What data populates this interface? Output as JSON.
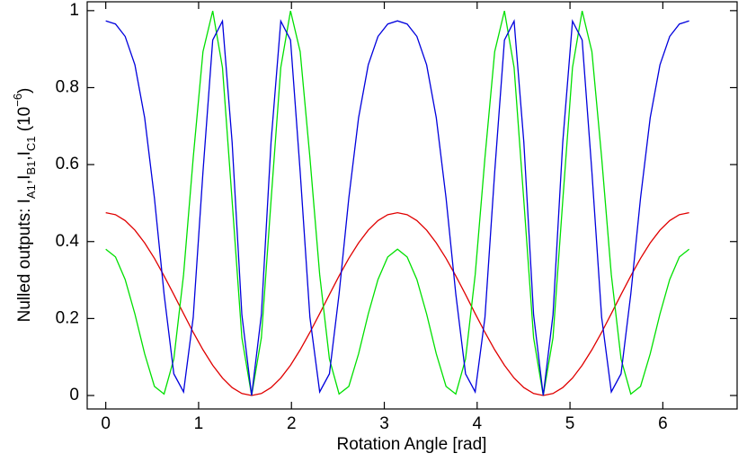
{
  "chart_data": {
    "type": "line",
    "x_label": "Rotation Angle [rad]",
    "y_label": [
      "Nulled outputs: I",
      "A1",
      ",I",
      "B1",
      ",I",
      "C1",
      "  (10",
      "−6",
      ")"
    ],
    "xlim": [
      -0.2,
      6.8
    ],
    "ylim": [
      -0.035,
      1.023
    ],
    "xticks": [
      0,
      1,
      2,
      3,
      4,
      5,
      6
    ],
    "yticks": [
      0,
      0.2,
      0.4,
      0.6,
      0.8,
      1
    ],
    "x": [
      0,
      0.105,
      0.209,
      0.314,
      0.419,
      0.524,
      0.628,
      0.733,
      0.838,
      0.942,
      1.047,
      1.152,
      1.257,
      1.361,
      1.466,
      1.571,
      1.676,
      1.78,
      1.885,
      1.99,
      2.094,
      2.199,
      2.304,
      2.409,
      2.513,
      2.618,
      2.723,
      2.827,
      2.932,
      3.037,
      3.142,
      3.246,
      3.351,
      3.456,
      3.56,
      3.665,
      3.77,
      3.875,
      3.979,
      4.084,
      4.189,
      4.294,
      4.398,
      4.503,
      4.608,
      4.712,
      4.817,
      4.922,
      5.027,
      5.131,
      5.236,
      5.341,
      5.445,
      5.55,
      5.655,
      5.76,
      5.864,
      5.969,
      6.074,
      6.178,
      6.283
    ],
    "series": [
      {
        "color": "#e00000",
        "values": [
          0.475,
          0.4698,
          0.4545,
          0.4296,
          0.3964,
          0.3563,
          0.3109,
          0.2623,
          0.2127,
          0.1641,
          0.1188,
          0.0786,
          0.0454,
          0.0205,
          0.0052,
          0,
          0.0052,
          0.0205,
          0.0454,
          0.0786,
          0.1188,
          0.1641,
          0.2127,
          0.2623,
          0.3109,
          0.3563,
          0.3964,
          0.4296,
          0.4545,
          0.4698,
          0.475,
          0.4698,
          0.4545,
          0.4296,
          0.3964,
          0.3563,
          0.3109,
          0.2623,
          0.2127,
          0.1641,
          0.1188,
          0.0786,
          0.0454,
          0.0205,
          0.0052,
          0,
          0.0052,
          0.0205,
          0.0454,
          0.0786,
          0.1188,
          0.1641,
          0.2127,
          0.2623,
          0.3109,
          0.3563,
          0.3964,
          0.4296,
          0.4545,
          0.4698,
          0.475
        ]
      },
      {
        "color": "#00e000",
        "values": [
          0.3802,
          0.36,
          0.3014,
          0.2117,
          0.1083,
          0.0237,
          0.0039,
          0.0949,
          0.314,
          0.618,
          0.8934,
          0.9994,
          0.8521,
          0.5058,
          0.1501,
          0,
          0.1501,
          0.5058,
          0.8521,
          0.9994,
          0.8934,
          0.618,
          0.314,
          0.0949,
          0.0039,
          0.0237,
          0.1083,
          0.2117,
          0.3014,
          0.36,
          0.3802,
          0.36,
          0.3014,
          0.2117,
          0.1083,
          0.0237,
          0.0039,
          0.0949,
          0.314,
          0.618,
          0.8934,
          0.9994,
          0.8521,
          0.5058,
          0.1501,
          0,
          0.1501,
          0.5058,
          0.8521,
          0.9994,
          0.8934,
          0.618,
          0.314,
          0.0949,
          0.0039,
          0.0237,
          0.1083,
          0.2117,
          0.3014,
          0.36,
          0.3802
        ]
      },
      {
        "color": "#0000dd",
        "values": [
          0.9734,
          0.9653,
          0.933,
          0.859,
          0.7217,
          0.5134,
          0.2638,
          0.0564,
          0.0094,
          0.2029,
          0.5808,
          0.9237,
          0.973,
          0.6579,
          0.2097,
          0,
          0.2097,
          0.6579,
          0.973,
          0.9237,
          0.5808,
          0.2029,
          0.0094,
          0.0564,
          0.2638,
          0.5134,
          0.7217,
          0.859,
          0.933,
          0.9653,
          0.9734,
          0.9653,
          0.933,
          0.859,
          0.7217,
          0.5134,
          0.2638,
          0.0564,
          0.0094,
          0.2029,
          0.5808,
          0.9237,
          0.973,
          0.6579,
          0.2097,
          0,
          0.2097,
          0.6579,
          0.973,
          0.9237,
          0.5808,
          0.2029,
          0.0094,
          0.0564,
          0.2638,
          0.5134,
          0.7217,
          0.859,
          0.933,
          0.9653,
          0.9734
        ]
      }
    ]
  }
}
